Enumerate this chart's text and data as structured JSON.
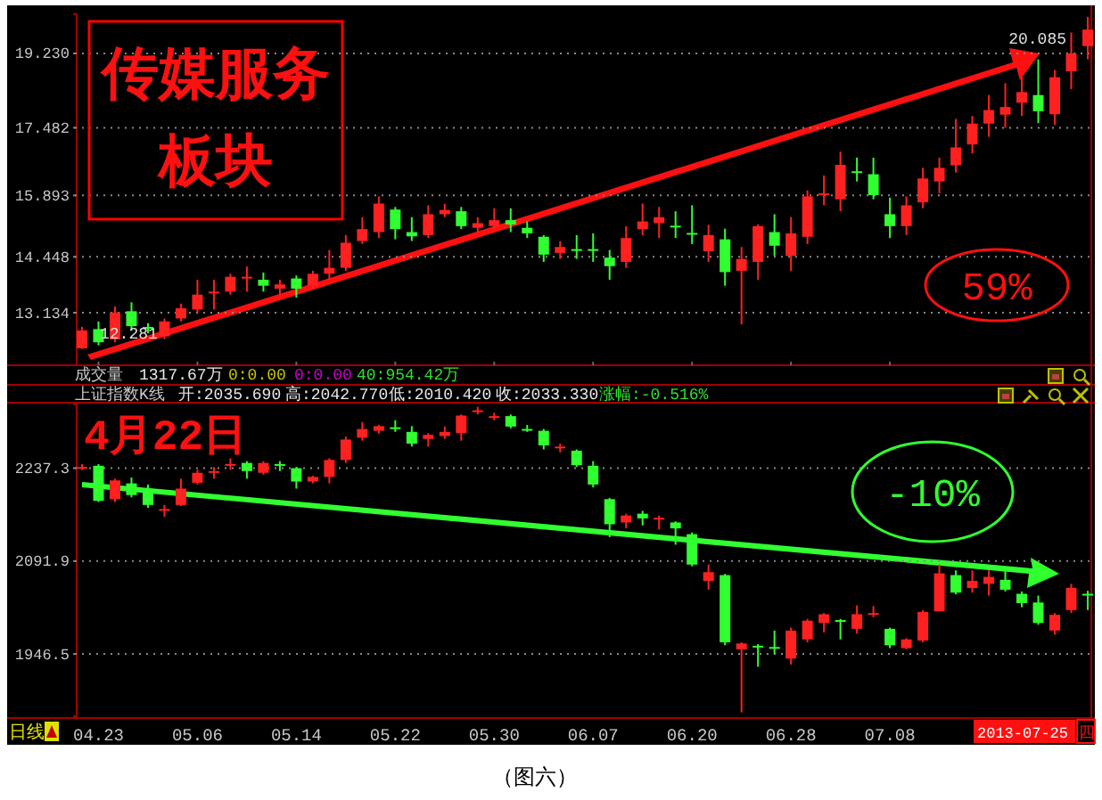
{
  "chart_data": [
    {
      "type": "candlestick",
      "title": "传媒服务板块",
      "categories": [
        null,
        "04.23",
        null,
        null,
        null,
        null,
        null,
        "05.06",
        null,
        null,
        null,
        null,
        null,
        "05.14",
        null,
        null,
        null,
        null,
        null,
        "05.22",
        null,
        null,
        null,
        null,
        null,
        "05.30",
        null,
        null,
        null,
        null,
        null,
        "06.07",
        null,
        null,
        null,
        null,
        null,
        "06.20",
        null,
        null,
        null,
        null,
        null,
        "06.28",
        null,
        null,
        null,
        null,
        null,
        "07.08",
        null,
        null,
        null,
        null,
        null,
        null,
        null,
        null,
        null,
        null,
        null,
        null
      ],
      "tick_labels": "y",
      "grid": "y",
      "ylim": [
        11.9,
        20.15
      ],
      "yticks": [
        {
          "value": 13.134,
          "label": "13.134"
        },
        {
          "value": 14.448,
          "label": "14.448"
        },
        {
          "value": 15.893,
          "label": "15.893"
        },
        {
          "value": 17.482,
          "label": "17.482"
        },
        {
          "value": 19.23,
          "label": "19.230"
        }
      ],
      "ohlc": [
        [
          12.3,
          12.8,
          12.281,
          12.72
        ],
        [
          12.75,
          12.93,
          12.37,
          12.44
        ],
        [
          12.51,
          13.28,
          12.44,
          13.14
        ],
        [
          13.17,
          13.38,
          12.72,
          12.82
        ],
        [
          12.8,
          12.89,
          12.65,
          12.78
        ],
        [
          12.58,
          13.0,
          12.51,
          12.93
        ],
        [
          13.0,
          13.35,
          12.93,
          13.24
        ],
        [
          13.21,
          13.91,
          13.14,
          13.56
        ],
        [
          13.61,
          13.91,
          13.21,
          13.63
        ],
        [
          13.63,
          14.05,
          13.56,
          13.98
        ],
        [
          13.96,
          14.22,
          13.63,
          13.98
        ],
        [
          13.91,
          14.08,
          13.63,
          13.77
        ],
        [
          13.7,
          13.91,
          13.56,
          13.8
        ],
        [
          13.94,
          14.01,
          13.49,
          13.7
        ],
        [
          13.77,
          14.12,
          13.7,
          14.05
        ],
        [
          14.05,
          14.61,
          13.91,
          14.19
        ],
        [
          14.19,
          14.96,
          14.12,
          14.78
        ],
        [
          14.82,
          15.38,
          14.75,
          15.1
        ],
        [
          15.03,
          15.87,
          14.89,
          15.7
        ],
        [
          15.56,
          15.62,
          14.86,
          15.1
        ],
        [
          15.03,
          15.38,
          14.82,
          14.93
        ],
        [
          14.96,
          15.66,
          14.89,
          15.45
        ],
        [
          15.45,
          15.69,
          15.38,
          15.55
        ],
        [
          15.52,
          15.62,
          15.1,
          15.17
        ],
        [
          15.13,
          15.38,
          15.03,
          15.24
        ],
        [
          15.17,
          15.59,
          15.1,
          15.31
        ],
        [
          15.31,
          15.59,
          15.03,
          15.21
        ],
        [
          15.13,
          15.28,
          14.89,
          15.0
        ],
        [
          14.92,
          14.96,
          14.33,
          14.5
        ],
        [
          14.54,
          14.82,
          14.4,
          14.68
        ],
        [
          14.63,
          14.96,
          14.4,
          14.61
        ],
        [
          14.63,
          15.0,
          14.33,
          14.61
        ],
        [
          14.43,
          14.61,
          13.91,
          14.23
        ],
        [
          14.33,
          15.17,
          14.19,
          14.89
        ],
        [
          15.1,
          15.7,
          14.96,
          15.28
        ],
        [
          15.24,
          15.62,
          14.89,
          15.38
        ],
        [
          15.18,
          15.52,
          14.89,
          15.17
        ],
        [
          15.01,
          15.66,
          14.75,
          15.0
        ],
        [
          14.58,
          15.2,
          14.33,
          14.96
        ],
        [
          14.86,
          15.11,
          13.77,
          14.09
        ],
        [
          14.12,
          14.68,
          12.86,
          14.4
        ],
        [
          14.33,
          15.21,
          13.91,
          15.17
        ],
        [
          15.03,
          15.45,
          14.47,
          14.71
        ],
        [
          14.47,
          15.38,
          14.12,
          15.0
        ],
        [
          14.92,
          16.01,
          14.75,
          15.87
        ],
        [
          15.9,
          16.36,
          15.66,
          15.94
        ],
        [
          15.8,
          16.92,
          15.52,
          16.61
        ],
        [
          16.46,
          16.78,
          16.22,
          16.44
        ],
        [
          16.39,
          16.78,
          15.8,
          15.9
        ],
        [
          15.45,
          15.84,
          14.89,
          15.17
        ],
        [
          15.17,
          15.87,
          14.96,
          15.66
        ],
        [
          15.73,
          16.54,
          15.59,
          16.29
        ],
        [
          16.22,
          16.78,
          15.94,
          16.54
        ],
        [
          16.6,
          17.69,
          16.43,
          17.02
        ],
        [
          17.09,
          17.76,
          16.88,
          17.58
        ],
        [
          17.58,
          18.25,
          17.27,
          17.9
        ],
        [
          17.79,
          18.53,
          17.48,
          17.97
        ],
        [
          18.07,
          18.67,
          17.76,
          18.32
        ],
        [
          18.25,
          19.09,
          17.59,
          17.87
        ],
        [
          17.8,
          18.84,
          17.55,
          18.67
        ],
        [
          18.81,
          19.72,
          18.39,
          19.23
        ],
        [
          19.4,
          20.085,
          19.09,
          19.79
        ]
      ],
      "colors": [
        "#ff2020",
        "#30ff30",
        "#ff2020",
        "#30ff30",
        "#30ff30",
        "#ff2020",
        "#ff2020",
        "#ff2020",
        "#ff2020",
        "#ff2020",
        "#ff2020",
        "#30ff30",
        "#ff2020",
        "#30ff30",
        "#ff2020",
        "#ff2020",
        "#ff2020",
        "#ff2020",
        "#ff2020",
        "#30ff30",
        "#30ff30",
        "#ff2020",
        "#ff2020",
        "#30ff30",
        "#ff2020",
        "#ff2020",
        "#30ff30",
        "#30ff30",
        "#30ff30",
        "#ff2020",
        "#30ff30",
        "#30ff30",
        "#30ff30",
        "#ff2020",
        "#ff2020",
        "#ff2020",
        "#30ff30",
        "#30ff30",
        "#ff2020",
        "#30ff30",
        "#ff2020",
        "#ff2020",
        "#30ff30",
        "#ff2020",
        "#ff2020",
        "#ff2020",
        "#ff2020",
        "#30ff30",
        "#30ff30",
        "#30ff30",
        "#ff2020",
        "#ff2020",
        "#ff2020",
        "#ff2020",
        "#ff2020",
        "#ff2020",
        "#ff2020",
        "#ff2020",
        "#30ff30",
        "#ff2020",
        "#ff2020",
        "#ff2020"
      ],
      "annotations": [
        "59%",
        "12.281",
        "20.085"
      ]
    },
    {
      "type": "candlestick",
      "categories": [
        null,
        "04.23",
        null,
        null,
        null,
        null,
        null,
        "05.06",
        null,
        null,
        null,
        null,
        null,
        "05.14",
        null,
        null,
        null,
        null,
        null,
        "05.22",
        null,
        null,
        null,
        null,
        null,
        "05.30",
        null,
        null,
        null,
        null,
        null,
        "06.07",
        null,
        null,
        null,
        null,
        null,
        "06.20",
        null,
        null,
        null,
        null,
        null,
        "06.28",
        null,
        null,
        null,
        null,
        null,
        "07.08",
        null,
        null,
        null,
        null,
        null,
        null,
        null,
        null,
        null,
        null,
        null,
        null
      ],
      "grid": "y",
      "ylim": [
        1849,
        2337
      ],
      "yticks": [
        1946.5,
        2091.9,
        2237.3
      ],
      "ohlc": [
        [
          2238.2,
          2243.7,
          2234.6,
          2239.1
        ],
        [
          2241.0,
          2243.7,
          2184.3,
          2186.1
        ],
        [
          2188.8,
          2220.8,
          2184.3,
          2218.1
        ],
        [
          2213.5,
          2222.7,
          2191.6,
          2195.2
        ],
        [
          2199.8,
          2211.7,
          2175.1,
          2179.7
        ],
        [
          2172.4,
          2179.7,
          2161.4,
          2173.3
        ],
        [
          2179.7,
          2220.8,
          2177.9,
          2205.3
        ],
        [
          2214.4,
          2234.6,
          2211.7,
          2230.0
        ],
        [
          2231.8,
          2239.1,
          2220.8,
          2232.7
        ],
        [
          2242.8,
          2252.8,
          2234.6,
          2243.7
        ],
        [
          2245.5,
          2248.3,
          2220.8,
          2232.7
        ],
        [
          2230.0,
          2248.3,
          2227.2,
          2245.5
        ],
        [
          2243.7,
          2248.3,
          2232.7,
          2242.8
        ],
        [
          2237.3,
          2239.1,
          2205.3,
          2216.3
        ],
        [
          2216.3,
          2225.4,
          2213.5,
          2223.6
        ],
        [
          2223.6,
          2252.8,
          2213.5,
          2250.1
        ],
        [
          2250.1,
          2286.7,
          2245.5,
          2282.1
        ],
        [
          2284.9,
          2309.5,
          2280.3,
          2298.6
        ],
        [
          2295.8,
          2305.0,
          2291.3,
          2303.1
        ],
        [
          2301.3,
          2312.3,
          2294.0,
          2300.4
        ],
        [
          2294.0,
          2303.1,
          2271.1,
          2275.7
        ],
        [
          2283.0,
          2292.2,
          2271.1,
          2289.4
        ],
        [
          2287.6,
          2302.4,
          2283.0,
          2294.0
        ],
        [
          2292.2,
          2321.4,
          2280.3,
          2319.6
        ],
        [
          2326.9,
          2333.3,
          2321.4,
          2327.8
        ],
        [
          2317.8,
          2324.2,
          2312.3,
          2318.7
        ],
        [
          2318.7,
          2321.4,
          2299.5,
          2302.4
        ],
        [
          2298.6,
          2305.0,
          2294.0,
          2297.7
        ],
        [
          2295.8,
          2298.6,
          2266.6,
          2273.0
        ],
        [
          2270.2,
          2275.7,
          2262.0,
          2271.1
        ],
        [
          2264.7,
          2266.6,
          2239.1,
          2241.9
        ],
        [
          2241.0,
          2248.3,
          2207.1,
          2211.7
        ],
        [
          2188.8,
          2190.7,
          2129.4,
          2149.5
        ],
        [
          2152.3,
          2166.0,
          2143.1,
          2163.2
        ],
        [
          2166.0,
          2170.5,
          2147.7,
          2158.7
        ],
        [
          2158.7,
          2163.2,
          2141.3,
          2159.6
        ],
        [
          2152.3,
          2154.1,
          2117.5,
          2143.1
        ],
        [
          2134.0,
          2136.7,
          2083.7,
          2086.4
        ],
        [
          2060.8,
          2086.4,
          2047.1,
          2074.5
        ],
        [
          2069.9,
          2071.8,
          1960.2,
          1964.8
        ],
        [
          1953.8,
          1964.8,
          1855.0,
          1962.9
        ],
        [
          1959.3,
          1962.0,
          1926.4,
          1958.4
        ],
        [
          1957.4,
          1983.1,
          1946.5,
          1956.5
        ],
        [
          1939.2,
          1987.6,
          1930.0,
          1983.1
        ],
        [
          1969.3,
          2001.4,
          1964.8,
          1998.6
        ],
        [
          1995.0,
          2010.5,
          1980.3,
          2008.7
        ],
        [
          1999.5,
          2001.4,
          1969.3,
          1998.6
        ],
        [
          1985.8,
          2022.4,
          1978.5,
          2008.7
        ],
        [
          2009.6,
          2021.5,
          2004.1,
          2010.5
        ],
        [
          1985.8,
          1987.6,
          1955.6,
          1960.2
        ],
        [
          1955.6,
          1971.2,
          1953.8,
          1969.3
        ],
        [
          1967.5,
          2015.1,
          1964.8,
          2012.3
        ],
        [
          2013.3,
          2086.4,
          2013.3,
          2072.7
        ],
        [
          2069.9,
          2077.3,
          2039.8,
          2042.5
        ],
        [
          2049.8,
          2077.3,
          2042.5,
          2060.8
        ],
        [
          2056.2,
          2077.3,
          2037.9,
          2067.2
        ],
        [
          2062.6,
          2077.3,
          2044.3,
          2047.1
        ],
        [
          2040.7,
          2044.3,
          2019.7,
          2026.1
        ],
        [
          2027.0,
          2037.9,
          1992.2,
          1995.0
        ],
        [
          1983.1,
          2010.5,
          1976.7,
          2007.8
        ],
        [
          2015.1,
          2056.2,
          2010.5,
          2049.8
        ],
        [
          2040.7,
          2045.3,
          2015.1,
          2039.8
        ]
      ],
      "colors": [
        "#ff2020",
        "#30ff30",
        "#ff2020",
        "#30ff30",
        "#30ff30",
        "#ff2020",
        "#ff2020",
        "#ff2020",
        "#ff2020",
        "#ff2020",
        "#30ff30",
        "#ff2020",
        "#30ff30",
        "#30ff30",
        "#ff2020",
        "#ff2020",
        "#ff2020",
        "#ff2020",
        "#ff2020",
        "#30ff30",
        "#30ff30",
        "#ff2020",
        "#ff2020",
        "#ff2020",
        "#ff2020",
        "#ff2020",
        "#30ff30",
        "#30ff30",
        "#30ff30",
        "#ff2020",
        "#30ff30",
        "#30ff30",
        "#30ff30",
        "#ff2020",
        "#30ff30",
        "#ff2020",
        "#30ff30",
        "#30ff30",
        "#ff2020",
        "#30ff30",
        "#ff2020",
        "#30ff30",
        "#30ff30",
        "#ff2020",
        "#ff2020",
        "#ff2020",
        "#30ff30",
        "#ff2020",
        "#ff2020",
        "#30ff30",
        "#ff2020",
        "#ff2020",
        "#ff2020",
        "#30ff30",
        "#ff2020",
        "#ff2020",
        "#30ff30",
        "#30ff30",
        "#30ff30",
        "#ff2020",
        "#ff2020",
        "#30ff30"
      ],
      "annotations": [
        "成交量",
        "1317.67万",
        "0:0.00",
        "0:0.00",
        "40:954.42万",
        "上证指数K线",
        "开:2035.690",
        "高:2042.770",
        "低:2010.420",
        "收:2033.330",
        "涨幅:-0.516%",
        "4月22日",
        "-10%",
        "日线",
        "2013-07-25",
        "四",
        "（图六）"
      ]
    }
  ]
}
